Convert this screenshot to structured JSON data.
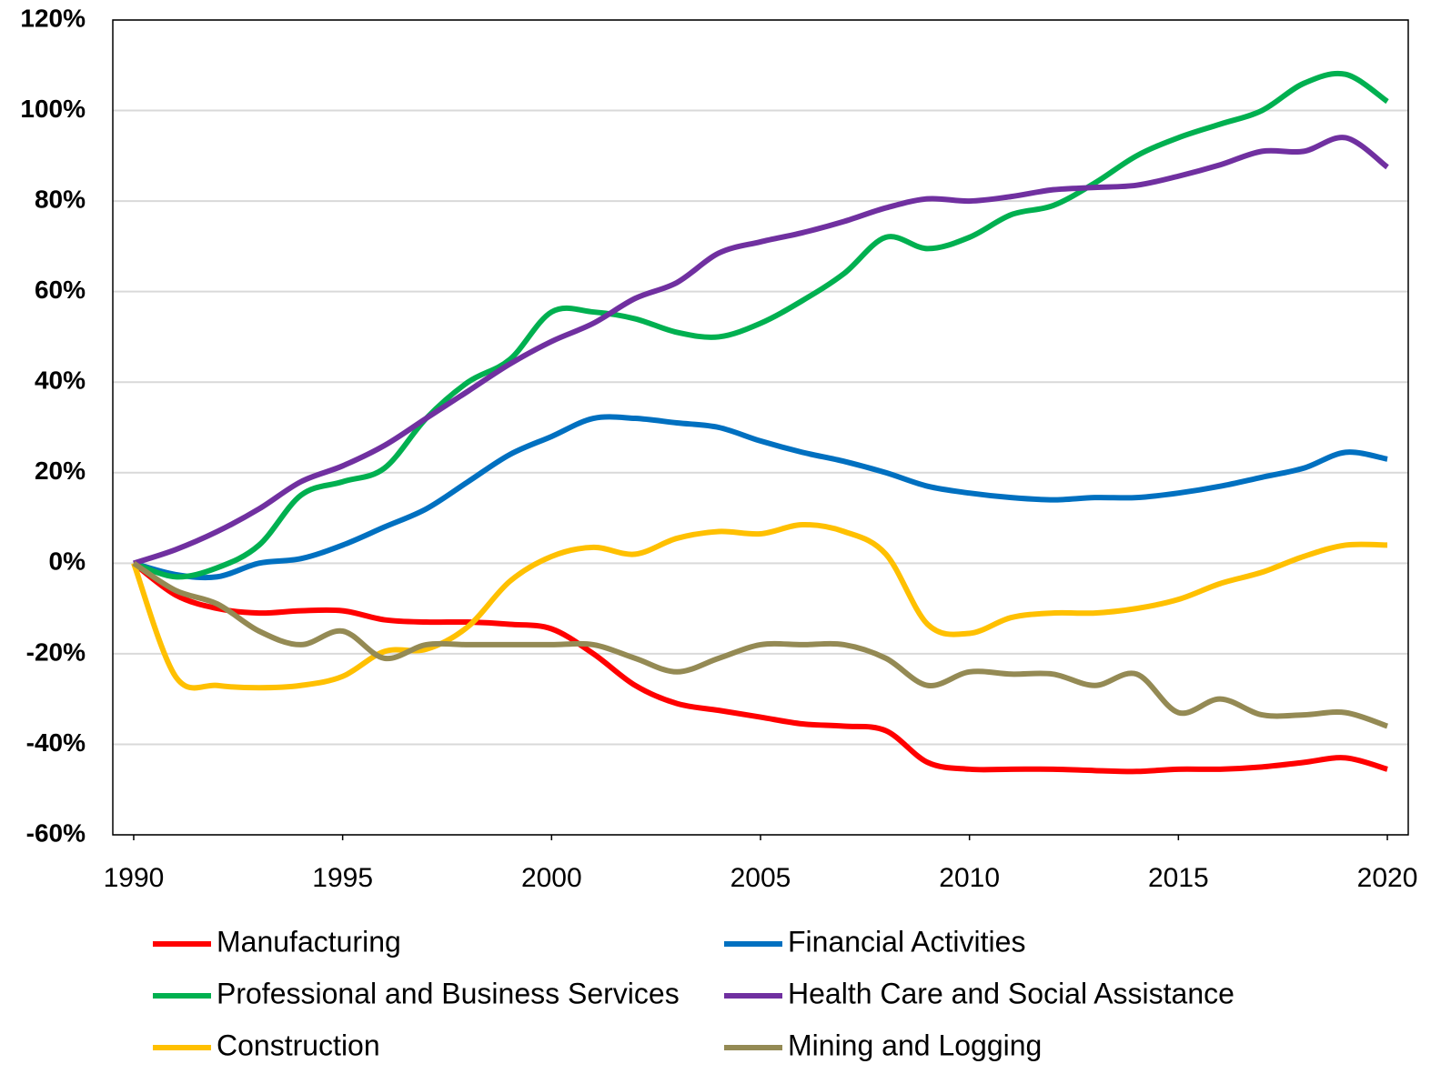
{
  "chart_data": {
    "type": "line",
    "x": [
      1990,
      1991,
      1992,
      1993,
      1994,
      1995,
      1996,
      1997,
      1998,
      1999,
      2000,
      2001,
      2002,
      2003,
      2004,
      2005,
      2006,
      2007,
      2008,
      2009,
      2010,
      2011,
      2012,
      2013,
      2014,
      2015,
      2016,
      2017,
      2018,
      2019,
      2020
    ],
    "series": [
      {
        "name": "Manufacturing",
        "color": "#ff0000",
        "values": [
          0,
          -7,
          -10,
          -11,
          -10.5,
          -10.5,
          -12.5,
          -13,
          -13,
          -13.5,
          -14.5,
          -20,
          -27,
          -31,
          -32.5,
          -34,
          -35.5,
          -36,
          -37,
          -44,
          -45.5,
          -45.5,
          -45.5,
          -45.8,
          -46,
          -45.5,
          -45.5,
          -45,
          -44,
          -43,
          -45.5
        ]
      },
      {
        "name": "Financial Activities",
        "color": "#0070c0",
        "values": [
          0,
          -2.5,
          -3,
          0,
          1,
          4,
          8,
          12,
          18,
          24,
          28,
          32,
          32,
          31,
          30,
          27,
          24.5,
          22.5,
          20,
          17,
          15.5,
          14.5,
          14,
          14.5,
          14.5,
          15.5,
          17,
          19,
          21,
          24.5,
          23
        ]
      },
      {
        "name": "Professional and Business Services",
        "color": "#00b050",
        "values": [
          0,
          -3,
          -1,
          4,
          15,
          18,
          21,
          32,
          40,
          45,
          55.5,
          55.5,
          54,
          51,
          50,
          53,
          58,
          64,
          72,
          69.5,
          72,
          77,
          79,
          84,
          90,
          94,
          97,
          100,
          106,
          108,
          102
        ]
      },
      {
        "name": "Health Care and Social Assistance",
        "color": "#7030a0",
        "values": [
          0,
          3,
          7,
          12,
          18,
          21.5,
          26,
          32,
          38,
          44,
          49,
          53,
          58.5,
          62,
          68.5,
          71,
          73,
          75.5,
          78.5,
          80.5,
          80,
          81,
          82.5,
          83,
          83.5,
          85.5,
          88,
          91,
          91,
          94,
          87.5
        ]
      },
      {
        "name": "Construction",
        "color": "#ffc000",
        "values": [
          0,
          -25,
          -27,
          -27.5,
          -27,
          -25,
          -19.5,
          -19,
          -14,
          -4,
          1.5,
          3.5,
          2,
          5.5,
          7,
          6.5,
          8.5,
          7,
          2,
          -13.5,
          -15.5,
          -12,
          -11,
          -11,
          -10,
          -8,
          -4.5,
          -2,
          1.5,
          4,
          4
        ]
      },
      {
        "name": "Mining and Logging",
        "color": "#948a54",
        "values": [
          0,
          -6,
          -9,
          -15,
          -18,
          -15,
          -21,
          -18,
          -18,
          -18,
          -18,
          -18,
          -21,
          -24,
          -21,
          -18,
          -18,
          -18,
          -21,
          -27,
          -24,
          -24.5,
          -24.5,
          -27,
          -24.5,
          -33,
          -30,
          -33.5,
          -33.5,
          -33,
          -36
        ]
      }
    ],
    "xlim": [
      1989.5,
      2020.5
    ],
    "xticks": [
      1990,
      1995,
      2000,
      2005,
      2010,
      2015,
      2020
    ],
    "ylim": [
      -60,
      120
    ],
    "yticks": [
      {
        "value": -60,
        "label": "-60%"
      },
      {
        "value": -40,
        "label": "-40%"
      },
      {
        "value": -20,
        "label": "-20%"
      },
      {
        "value": 0,
        "label": "0%"
      },
      {
        "value": 20,
        "label": "20%"
      },
      {
        "value": 40,
        "label": "40%"
      },
      {
        "value": 60,
        "label": "60%"
      },
      {
        "value": 80,
        "label": "80%"
      },
      {
        "value": 100,
        "label": "100%"
      },
      {
        "value": 120,
        "label": "120%"
      }
    ],
    "grid": true
  }
}
